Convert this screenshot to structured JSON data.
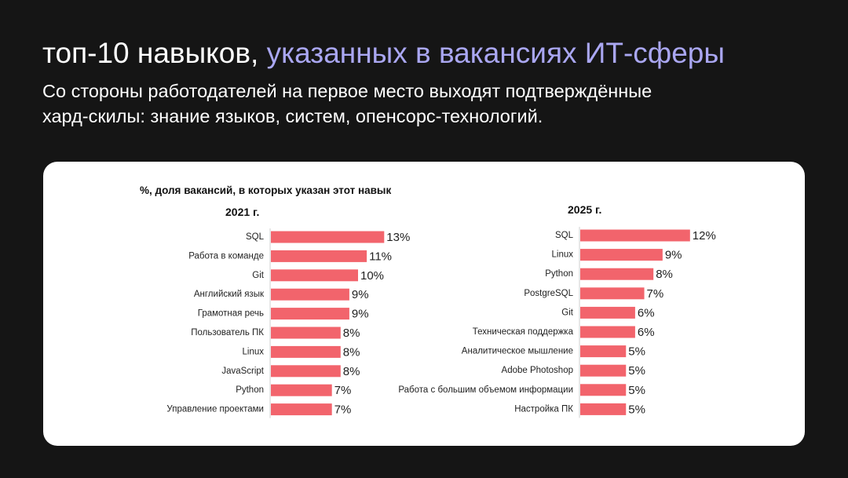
{
  "header": {
    "title_parts": [
      "топ-10 навыков, ",
      "указанных в вакансиях ИТ-сферы"
    ],
    "subtitle_lines": [
      "Со стороны работодателей на первое место выходят подтверждённые",
      "хард-скилы: знание языков, систем, опенсорс-технологий."
    ]
  },
  "card": {
    "caption": "%, доля вакансий, в которых указан этот навык"
  },
  "chart_data": [
    {
      "type": "bar",
      "orientation": "horizontal",
      "title": "2021 г.",
      "color": "#f2646c",
      "categories": [
        "SQL",
        "Работа в команде",
        "Git",
        "Английский язык",
        "Грамотная речь",
        "Пользователь ПК",
        "Linux",
        "JavaScript",
        "Python",
        "Управление проектами"
      ],
      "values": [
        13,
        11,
        10,
        9,
        9,
        8,
        8,
        8,
        7,
        7
      ],
      "value_labels": [
        "13%",
        "11%",
        "10%",
        "9%",
        "9%",
        "8%",
        "8%",
        "8%",
        "7%",
        "7%"
      ]
    },
    {
      "type": "bar",
      "orientation": "horizontal",
      "title": "2025 г.",
      "color": "#f2646c",
      "categories": [
        "SQL",
        "Linux",
        "Python",
        "PostgreSQL",
        "Git",
        "Техническая поддержка",
        "Аналитическое мышление",
        "Adobe Photoshop",
        "Работа с большим объемом информации",
        "Настройка ПК"
      ],
      "values": [
        12,
        9,
        8,
        7,
        6,
        6,
        5,
        5,
        5,
        5
      ],
      "value_labels": [
        "12%",
        "9%",
        "8%",
        "7%",
        "6%",
        "6%",
        "5%",
        "5%",
        "5%",
        "5%"
      ]
    }
  ]
}
